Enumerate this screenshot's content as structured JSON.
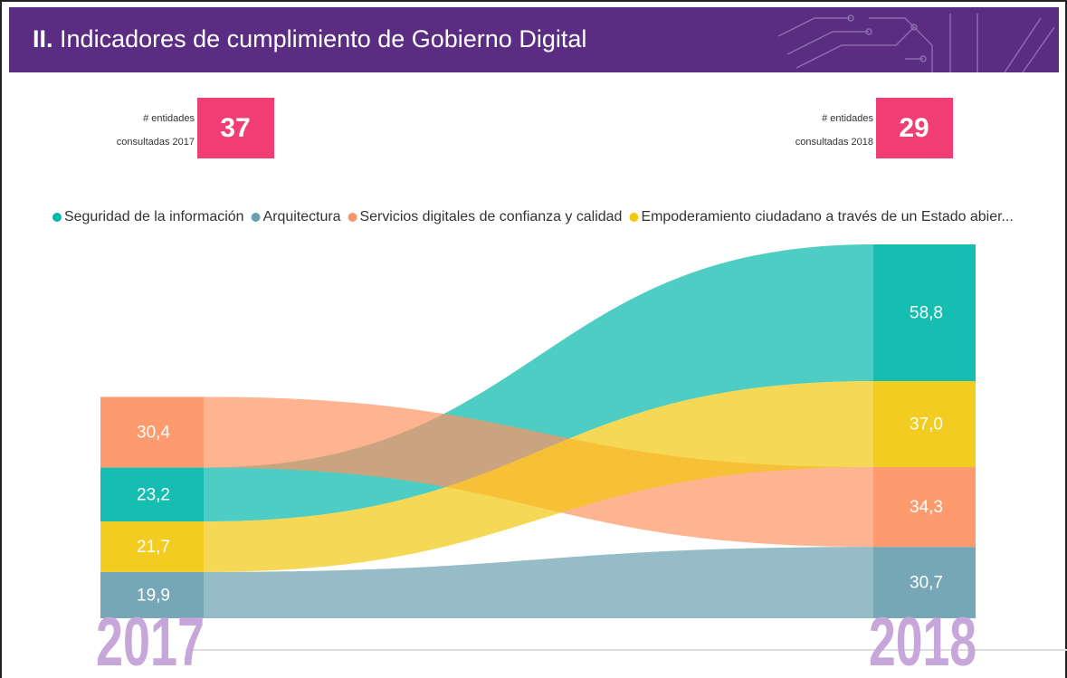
{
  "header": {
    "title_number": "II.",
    "title": "Indicadores de cumplimiento de Gobierno Digital"
  },
  "cards": [
    {
      "label_line1": "# entidades",
      "label_line2": "consultadas 2017",
      "value": 37
    },
    {
      "label_line1": "# entidades",
      "label_line2": "consultadas 2018",
      "value": 29
    }
  ],
  "chart_data": {
    "type": "ribbon",
    "categories": [
      "2017",
      "2018"
    ],
    "series": [
      {
        "name": "Seguridad de la información",
        "color": "#01b8aa",
        "values": [
          23.2,
          58.8
        ],
        "value_labels": [
          "23,2",
          "58,8"
        ]
      },
      {
        "name": "Arquitectura",
        "color": "#6a9fb0",
        "values": [
          19.9,
          30.7
        ],
        "value_labels": [
          "19,9",
          "30,7"
        ]
      },
      {
        "name": "Servicios digitales de confianza y calidad",
        "color": "#fd9362",
        "values": [
          30.4,
          34.3
        ],
        "value_labels": [
          "30,4",
          "34,3"
        ]
      },
      {
        "name": "Empoderamiento ciudadano a través de un Estado abier...",
        "color": "#f2c80f",
        "values": [
          21.7,
          37.0
        ],
        "value_labels": [
          "21,7",
          "37,0"
        ]
      }
    ]
  }
}
